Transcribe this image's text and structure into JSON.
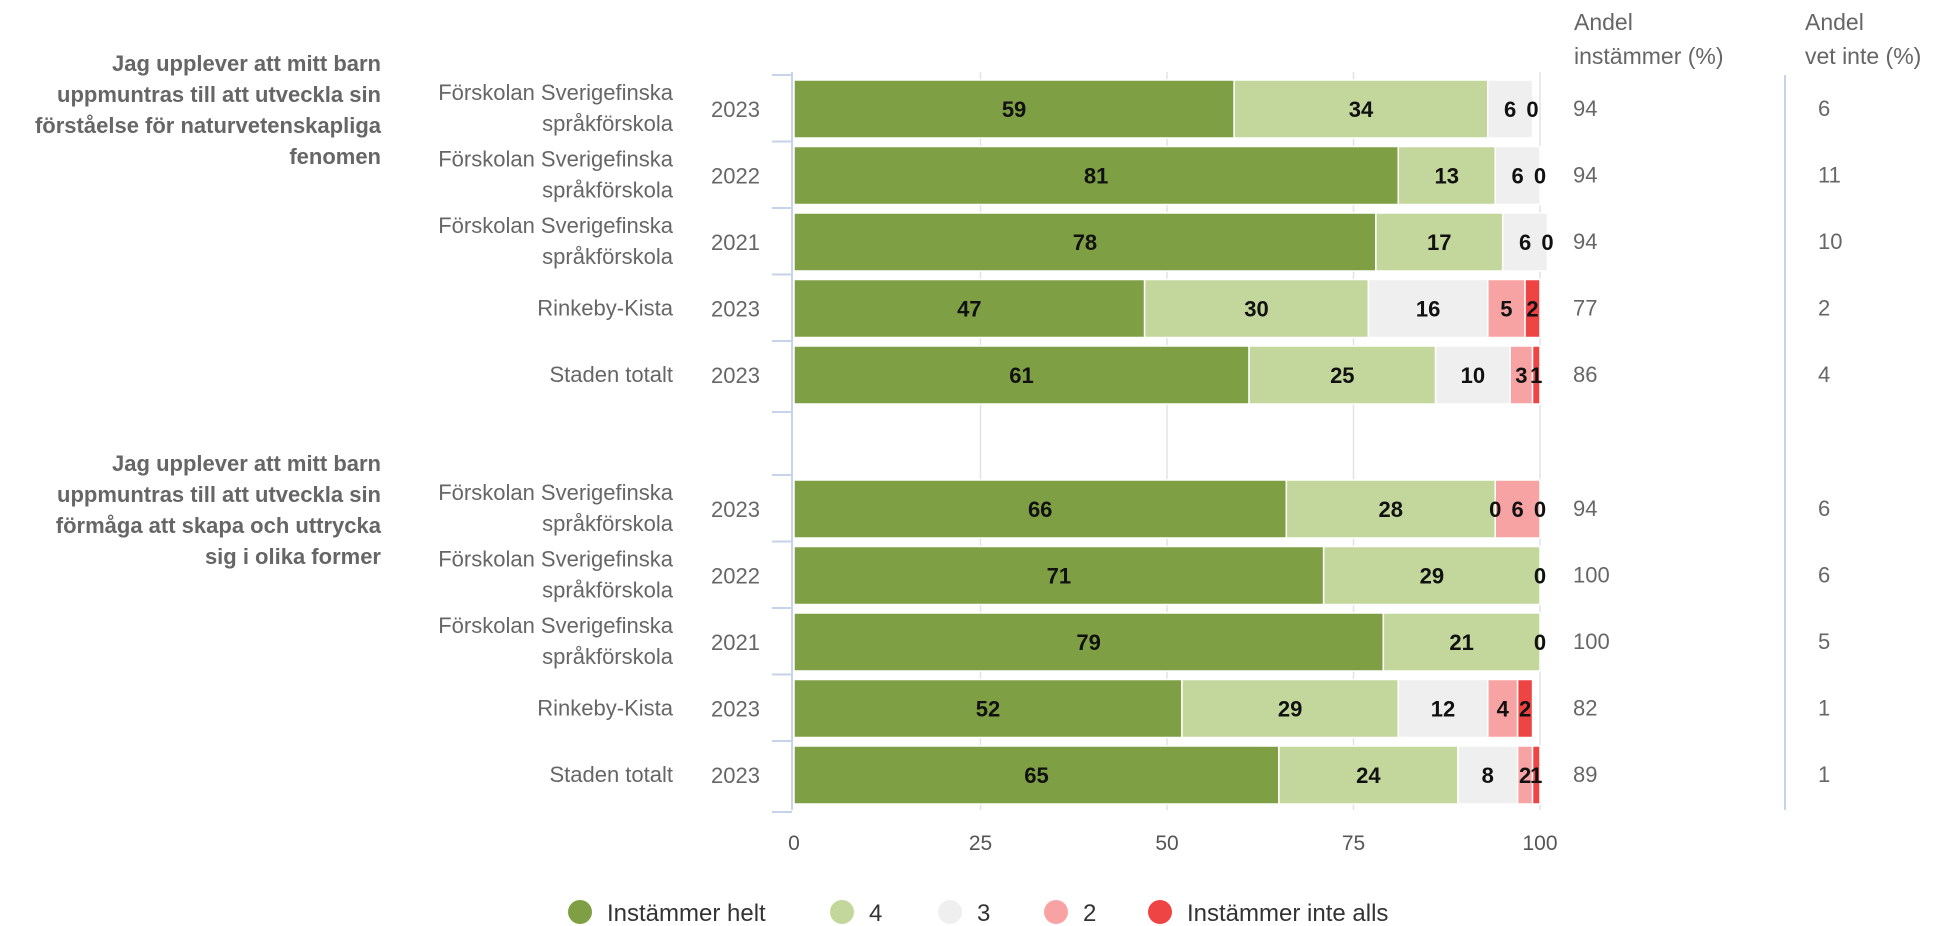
{
  "chart_data": {
    "type": "bar",
    "orientation": "horizontal",
    "stacked": true,
    "xlim": [
      0,
      100
    ],
    "x_ticks": [
      "0",
      "25",
      "50",
      "75",
      "100"
    ],
    "grid": true,
    "legend_position": "bottom",
    "column_headers": {
      "agree_line1": "Andel",
      "agree_line2": "instämmer (%)",
      "unknown_line1": "Andel",
      "unknown_line2": "vet inte (%)"
    },
    "series": [
      {
        "name": "Instämmer helt",
        "color": "#7f9f45"
      },
      {
        "name": "4",
        "color": "#c3d79c"
      },
      {
        "name": "3",
        "color": "#efefef"
      },
      {
        "name": "2",
        "color": "#f8a3a3"
      },
      {
        "name": "Instämmer inte alls",
        "color": "#ee4444"
      }
    ],
    "groups": [
      {
        "title_lines": [
          "Jag upplever att mitt barn",
          "uppmuntras till att utveckla sin",
          "förståelse för naturvetenskapliga",
          "fenomen"
        ],
        "rows": [
          {
            "label": [
              "Förskolan Sverigefinska",
              "språkförskola"
            ],
            "year": "2023",
            "values": [
              59,
              34,
              6,
              0,
              0
            ],
            "shown_labels": [
              "59",
              "34",
              "6",
              "0",
              ""
            ],
            "agree": "94",
            "unknown": "6"
          },
          {
            "label": [
              "Förskolan Sverigefinska",
              "språkförskola"
            ],
            "year": "2022",
            "values": [
              81,
              13,
              6,
              0,
              0
            ],
            "shown_labels": [
              "81",
              "13",
              "6",
              "0",
              ""
            ],
            "agree": "94",
            "unknown": "11"
          },
          {
            "label": [
              "Förskolan Sverigefinska",
              "språkförskola"
            ],
            "year": "2021",
            "values": [
              78,
              17,
              6,
              0,
              0
            ],
            "shown_labels": [
              "78",
              "17",
              "6",
              "0",
              ""
            ],
            "agree": "94",
            "unknown": "10"
          },
          {
            "label": [
              "Rinkeby-Kista"
            ],
            "year": "2023",
            "values": [
              47,
              30,
              16,
              5,
              2
            ],
            "shown_labels": [
              "47",
              "30",
              "16",
              "5",
              "2"
            ],
            "agree": "77",
            "unknown": "2"
          },
          {
            "label": [
              "Staden totalt"
            ],
            "year": "2023",
            "values": [
              61,
              25,
              10,
              3,
              1
            ],
            "shown_labels": [
              "61",
              "25",
              "10",
              "3",
              "1"
            ],
            "agree": "86",
            "unknown": "4"
          }
        ]
      },
      {
        "title_lines": [
          "Jag upplever att mitt barn",
          "uppmuntras till att utveckla sin",
          "förmåga att skapa och uttrycka",
          "sig i olika former"
        ],
        "rows": [
          {
            "label": [
              "Förskolan Sverigefinska",
              "språkförskola"
            ],
            "year": "2023",
            "values": [
              66,
              28,
              0,
              6,
              0
            ],
            "shown_labels": [
              "66",
              "28",
              "0",
              "6",
              "0"
            ],
            "agree": "94",
            "unknown": "6"
          },
          {
            "label": [
              "Förskolan Sverigefinska",
              "språkförskola"
            ],
            "year": "2022",
            "values": [
              71,
              29,
              0,
              0,
              0
            ],
            "shown_labels": [
              "71",
              "29",
              "0",
              "",
              ""
            ],
            "agree": "100",
            "unknown": "6"
          },
          {
            "label": [
              "Förskolan Sverigefinska",
              "språkförskola"
            ],
            "year": "2021",
            "values": [
              79,
              21,
              0,
              0,
              0
            ],
            "shown_labels": [
              "79",
              "21",
              "0",
              "",
              ""
            ],
            "agree": "100",
            "unknown": "5"
          },
          {
            "label": [
              "Rinkeby-Kista"
            ],
            "year": "2023",
            "values": [
              52,
              29,
              12,
              4,
              2
            ],
            "shown_labels": [
              "52",
              "29",
              "12",
              "4",
              "2"
            ],
            "agree": "82",
            "unknown": "1"
          },
          {
            "label": [
              "Staden totalt"
            ],
            "year": "2023",
            "values": [
              65,
              24,
              8,
              2,
              1
            ],
            "shown_labels": [
              "65",
              "24",
              "8",
              "2",
              "1"
            ],
            "agree": "89",
            "unknown": "1"
          }
        ]
      }
    ]
  }
}
